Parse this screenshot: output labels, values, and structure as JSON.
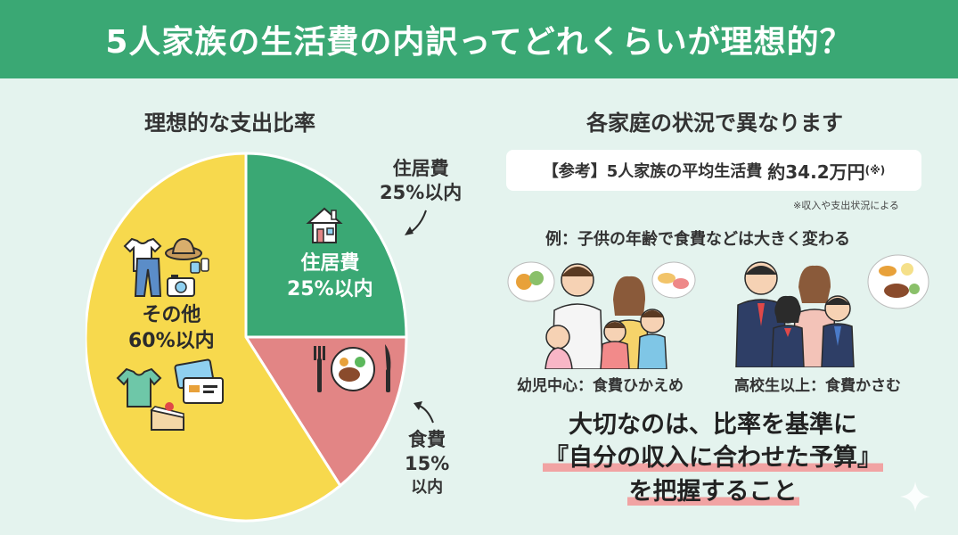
{
  "header": {
    "title": "5人家族の生活費の内訳ってどれくらいが理想的？"
  },
  "left": {
    "title": "理想的な支出比率",
    "slices": [
      {
        "name": "住居費",
        "percent": 25,
        "label_pct": "25%以内",
        "color": "#3aa874"
      },
      {
        "name": "食費",
        "percent": 15,
        "label_pct": "15%",
        "label_sub": "以内",
        "color": "#e28585"
      },
      {
        "name": "その他",
        "percent": 60,
        "label_pct": "60%以内",
        "color": "#f7d94d"
      }
    ]
  },
  "right": {
    "title": "各家庭の状況で異なります",
    "reference": {
      "prefix": "【参考】5人家族の平均生活費",
      "amount": "約34.2万円",
      "mark": "(※)"
    },
    "note": "※収入や支出状況による",
    "example": "例：子供の年齢で食費などは大きく変わる",
    "families": [
      {
        "caption": "幼児中心：食費ひかえめ"
      },
      {
        "caption": "高校生以上：食費かさむ"
      }
    ],
    "conclusion": {
      "line1": "大切なのは、比率を基準に",
      "line2": "『自分の収入に合わせた予算』",
      "line3": "を把握すること"
    }
  },
  "icons": [
    "house-icon",
    "tshirt-icon",
    "pants-icon",
    "hat-icon",
    "camera-icon",
    "shirt-icon",
    "card-icon",
    "cake-icon",
    "plate-icon",
    "fork-icon",
    "knife-icon",
    "sparkle-icon"
  ]
}
